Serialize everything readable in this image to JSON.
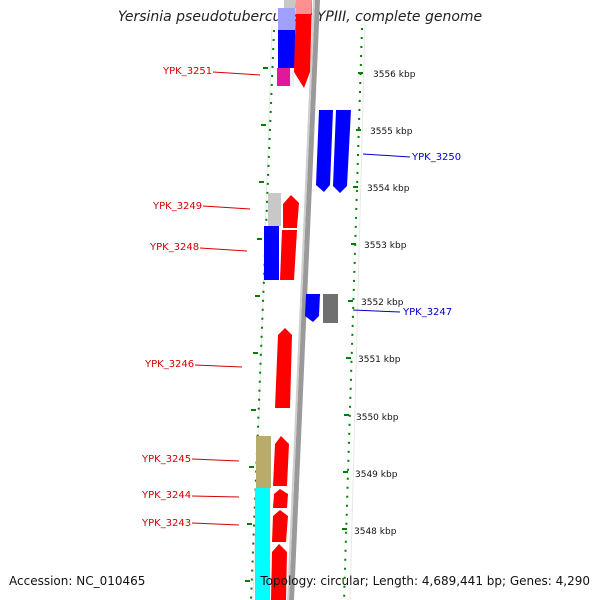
{
  "title": "Yersinia pseudotuberculosis YPIII, complete genome",
  "accession": "Accession: NC_010465",
  "topology": "Topology: circular; Length: 4,689,441 bp; Genes: 4,290",
  "colors": {
    "red": "#ff0000",
    "blue": "#0000ff",
    "gray": "#c8c8c8",
    "dark_gray": "#808080",
    "magenta": "#e0199a",
    "olive": "#b8ac6c",
    "cyan": "#00ffff",
    "backbone": "#9a9a9a",
    "scale": "#008000",
    "label_left": "#d40000",
    "label_right": "#0000c8"
  },
  "ticks": [
    {
      "label": "3556 kbp"
    },
    {
      "label": "3555 kbp"
    },
    {
      "label": "3554 kbp"
    },
    {
      "label": "3553 kbp"
    },
    {
      "label": "3552 kbp"
    },
    {
      "label": "3551 kbp"
    },
    {
      "label": "3550 kbp"
    },
    {
      "label": "3549 kbp"
    },
    {
      "label": "3548 kbp"
    }
  ],
  "gene_labels": [
    {
      "id": "YPK_3251"
    },
    {
      "id": "YPK_3250"
    },
    {
      "id": "YPK_3249"
    },
    {
      "id": "YPK_3248"
    },
    {
      "id": "YPK_3247"
    },
    {
      "id": "YPK_3246"
    },
    {
      "id": "YPK_3245"
    },
    {
      "id": "YPK_3244"
    },
    {
      "id": "YPK_3243"
    }
  ]
}
